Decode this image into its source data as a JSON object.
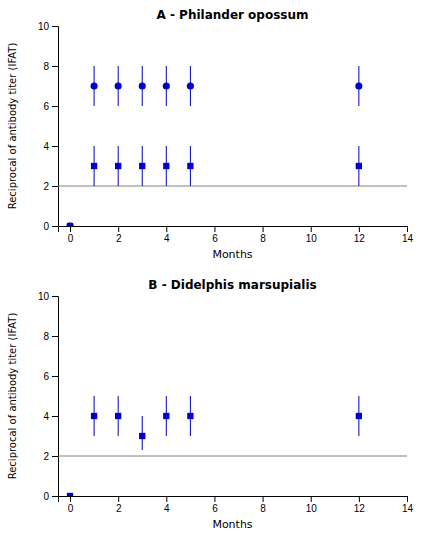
{
  "chart_data": [
    {
      "type": "scatter",
      "title": "A - Philander opossum",
      "xlabel": "Months",
      "ylabel": "Reciprocal of antibody titer (IFAT)",
      "x": [
        0,
        1,
        2,
        3,
        4,
        5,
        12
      ],
      "series": [
        {
          "marker": "circle",
          "color": "#0000cc",
          "values": [
            0,
            7,
            7,
            7,
            7,
            7,
            7
          ],
          "error_lo": [
            0,
            1,
            1,
            1,
            1,
            1,
            1
          ],
          "error_hi": [
            0,
            1,
            1,
            1,
            1,
            1,
            1
          ]
        },
        {
          "marker": "square",
          "color": "#0000cc",
          "values": [
            0,
            3,
            3,
            3,
            3,
            3,
            3
          ],
          "error_lo": [
            0,
            1,
            1,
            1,
            1,
            1,
            1
          ],
          "error_hi": [
            0,
            1,
            1,
            1,
            1,
            1,
            1
          ]
        }
      ],
      "reference_line": {
        "y": 2,
        "color": "#808080"
      },
      "xlim": [
        -0.5,
        14
      ],
      "xticks": [
        0,
        2,
        4,
        6,
        8,
        10,
        12,
        14
      ],
      "ylim": [
        0,
        10
      ],
      "yticks": [
        0,
        2,
        4,
        6,
        8,
        10
      ],
      "grid": false
    },
    {
      "type": "scatter",
      "title": "B - Didelphis marsupialis",
      "xlabel": "Months",
      "ylabel": "Reciprocal of antibody titer (IFAT)",
      "x": [
        0,
        1,
        2,
        3,
        4,
        5,
        12
      ],
      "series": [
        {
          "marker": "square",
          "color": "#0000cc",
          "values": [
            0,
            4,
            4,
            3,
            4,
            4,
            4
          ],
          "error_lo": [
            0,
            1,
            1,
            0.7,
            1,
            1,
            1
          ],
          "error_hi": [
            0,
            1,
            1,
            1,
            1,
            1,
            1
          ]
        }
      ],
      "reference_line": {
        "y": 2,
        "color": "#808080"
      },
      "xlim": [
        -0.5,
        14
      ],
      "xticks": [
        0,
        2,
        4,
        6,
        8,
        10,
        12,
        14
      ],
      "ylim": [
        0,
        10
      ],
      "yticks": [
        0,
        2,
        4,
        6,
        8,
        10
      ],
      "grid": false
    }
  ]
}
